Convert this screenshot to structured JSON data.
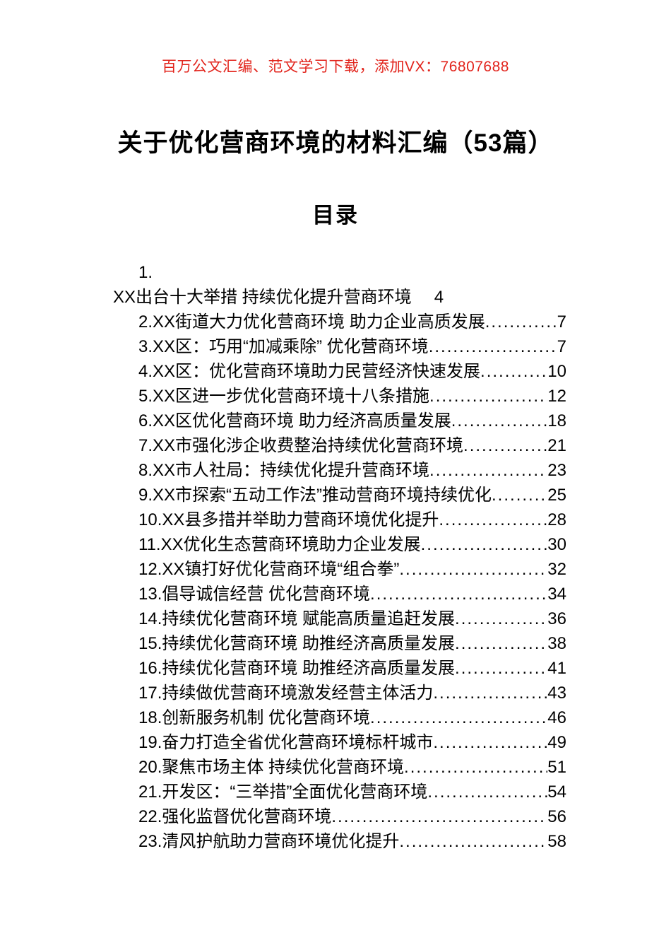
{
  "document": {
    "promo_banner": "百万公文汇编、范文学习下载，添加VX：76807688",
    "title": "关于优化营商环境的材料汇编（53篇）",
    "toc_heading": "目录",
    "colors": {
      "banner_red": "#e2241c",
      "text": "#000000",
      "page_background": "#ffffff"
    }
  },
  "toc": {
    "first_entry": {
      "number": "1.",
      "title": "XX出台十大举措 持续优化提升营商环境",
      "page": "4"
    },
    "entries": [
      {
        "label": "2.XX街道大力优化营商环境 助力企业高质发展",
        "page": "7"
      },
      {
        "label": "3.XX区：巧用“加减乘除” 优化营商环境",
        "page": "7"
      },
      {
        "label": "4.XX区：优化营商环境助力民营经济快速发展",
        "page": "10"
      },
      {
        "label": "5.XX区进一步优化营商环境十八条措施",
        "page": "12"
      },
      {
        "label": "6.XX区优化营商环境 助力经济高质量发展",
        "page": "18"
      },
      {
        "label": "7.XX市强化涉企收费整治持续优化营商环境",
        "page": "21"
      },
      {
        "label": "8.XX市人社局：持续优化提升营商环境",
        "page": "23"
      },
      {
        "label": "9.XX市探索“五动工作法”推动营商环境持续优化",
        "page": "25"
      },
      {
        "label": "10.XX县多措并举助力营商环境优化提升",
        "page": "28"
      },
      {
        "label": "11.XX优化生态营商环境助力企业发展",
        "page": "30"
      },
      {
        "label": "12.XX镇打好优化营商环境“组合拳”",
        "page": "32"
      },
      {
        "label": "13.倡导诚信经营 优化营商环境",
        "page": "34"
      },
      {
        "label": "14.持续优化营商环境 赋能高质量追赶发展",
        "page": "36"
      },
      {
        "label": "15.持续优化营商环境 助推经济高质量发展",
        "page": "38"
      },
      {
        "label": "16.持续优化营商环境 助推经济高质量发展",
        "page": "41"
      },
      {
        "label": "17.持续做优营商环境激发经营主体活力",
        "page": "43"
      },
      {
        "label": "18.创新服务机制 优化营商环境",
        "page": "46"
      },
      {
        "label": "19.奋力打造全省优化营商环境标杆城市",
        "page": "49"
      },
      {
        "label": "20.聚焦市场主体 持续优化营商环境",
        "page": "51"
      },
      {
        "label": "21.开发区：“三举措”全面优化营商环境",
        "page": "54"
      },
      {
        "label": "22.强化监督优化营商环境",
        "page": "56"
      },
      {
        "label": "23.清风护航助力营商环境优化提升",
        "page": "58"
      }
    ]
  }
}
